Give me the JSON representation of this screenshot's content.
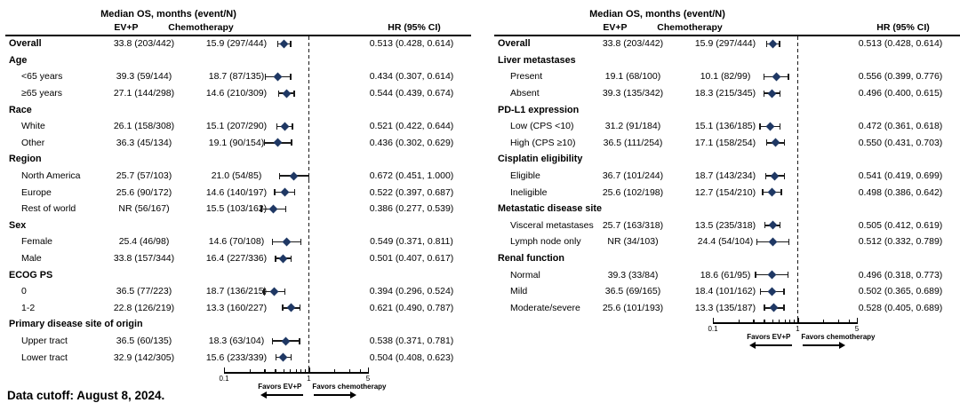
{
  "figure": {
    "footnote": "Data cutoff: August 8, 2024."
  },
  "chart_data": [
    {
      "type": "forest",
      "title": "Median OS, months (event/N)",
      "col_headers": {
        "ev_p": "EV+P",
        "chemo": "Chemotherapy",
        "hr": "HR (95% CI)"
      },
      "axis": {
        "scale": "log",
        "min": 0.1,
        "max": 5,
        "ref": 1,
        "major_ticks": [
          0.1,
          1,
          5
        ],
        "major_tick_labels": [
          "0.1",
          "1",
          "5"
        ],
        "minor_ticks": [
          0.2,
          0.3,
          0.4,
          0.5,
          0.6,
          0.7,
          0.8,
          0.9,
          2,
          3,
          4
        ]
      },
      "favors_left": "Favors EV+P",
      "favors_right": "Favors chemotherapy",
      "marker_color": "#1F3864",
      "rows": [
        {
          "label": "Overall",
          "bold": true,
          "ev_p": "33.8 (203/442)",
          "chemo": "15.9 (297/444)",
          "hr": 0.513,
          "ci_low": 0.428,
          "ci_high": 0.614,
          "hr_text": "0.513 (0.428, 0.614)"
        },
        {
          "label": "Age",
          "group": true
        },
        {
          "label": "<65 years",
          "ev_p": "39.3 (59/144)",
          "chemo": "18.7 (87/135)",
          "hr": 0.434,
          "ci_low": 0.307,
          "ci_high": 0.614,
          "hr_text": "0.434 (0.307, 0.614)"
        },
        {
          "label": "≥65 years",
          "ev_p": "27.1 (144/298)",
          "chemo": "14.6 (210/309)",
          "hr": 0.544,
          "ci_low": 0.439,
          "ci_high": 0.674,
          "hr_text": "0.544 (0.439, 0.674)"
        },
        {
          "label": "Race",
          "group": true
        },
        {
          "label": "White",
          "ev_p": "26.1 (158/308)",
          "chemo": "15.1 (207/290)",
          "hr": 0.521,
          "ci_low": 0.422,
          "ci_high": 0.644,
          "hr_text": "0.521 (0.422, 0.644)"
        },
        {
          "label": "Other",
          "ev_p": "36.3 (45/134)",
          "chemo": "19.1 (90/154)",
          "hr": 0.436,
          "ci_low": 0.302,
          "ci_high": 0.629,
          "hr_text": "0.436 (0.302, 0.629)"
        },
        {
          "label": "Region",
          "group": true
        },
        {
          "label": "North America",
          "ev_p": "25.7 (57/103)",
          "chemo": "21.0 (54/85)",
          "hr": 0.672,
          "ci_low": 0.451,
          "ci_high": 1.0,
          "hr_text": "0.672 (0.451, 1.000)"
        },
        {
          "label": "Europe",
          "ev_p": "25.6 (90/172)",
          "chemo": "14.6 (140/197)",
          "hr": 0.522,
          "ci_low": 0.397,
          "ci_high": 0.687,
          "hr_text": "0.522 (0.397, 0.687)"
        },
        {
          "label": "Rest of world",
          "ev_p": "NR (56/167)",
          "chemo": "15.5 (103/162)",
          "hr": 0.386,
          "ci_low": 0.277,
          "ci_high": 0.539,
          "hr_text": "0.386 (0.277, 0.539)"
        },
        {
          "label": "Sex",
          "group": true
        },
        {
          "label": "Female",
          "ev_p": "25.4 (46/98)",
          "chemo": "14.6 (70/108)",
          "hr": 0.549,
          "ci_low": 0.371,
          "ci_high": 0.811,
          "hr_text": "0.549 (0.371, 0.811)"
        },
        {
          "label": "Male",
          "ev_p": "33.8 (157/344)",
          "chemo": "16.4 (227/336)",
          "hr": 0.501,
          "ci_low": 0.407,
          "ci_high": 0.617,
          "hr_text": "0.501 (0.407, 0.617)"
        },
        {
          "label": "ECOG PS",
          "group": true
        },
        {
          "label": "0",
          "ev_p": "36.5 (77/223)",
          "chemo": "18.7 (136/215)",
          "hr": 0.394,
          "ci_low": 0.296,
          "ci_high": 0.524,
          "hr_text": "0.394 (0.296, 0.524)"
        },
        {
          "label": "1-2",
          "ev_p": "22.8 (126/219)",
          "chemo": "13.3 (160/227)",
          "hr": 0.621,
          "ci_low": 0.49,
          "ci_high": 0.787,
          "hr_text": "0.621 (0.490, 0.787)"
        },
        {
          "label": "Primary disease site of origin",
          "group": true
        },
        {
          "label": "Upper tract",
          "ev_p": "36.5 (60/135)",
          "chemo": "18.3 (63/104)",
          "hr": 0.538,
          "ci_low": 0.371,
          "ci_high": 0.781,
          "hr_text": "0.538 (0.371, 0.781)"
        },
        {
          "label": "Lower tract",
          "ev_p": "32.9 (142/305)",
          "chemo": "15.6 (233/339)",
          "hr": 0.504,
          "ci_low": 0.408,
          "ci_high": 0.623,
          "hr_text": "0.504 (0.408, 0.623)"
        }
      ]
    },
    {
      "type": "forest",
      "title": "Median OS, months (event/N)",
      "col_headers": {
        "ev_p": "EV+P",
        "chemo": "Chemotherapy",
        "hr": "HR (95% CI)"
      },
      "axis": {
        "scale": "log",
        "min": 0.1,
        "max": 5,
        "ref": 1,
        "major_ticks": [
          0.1,
          1,
          5
        ],
        "major_tick_labels": [
          "0.1",
          "1",
          "5"
        ],
        "minor_ticks": [
          0.2,
          0.3,
          0.4,
          0.5,
          0.6,
          0.7,
          0.8,
          0.9,
          2,
          3,
          4
        ]
      },
      "favors_left": "Favors EV+P",
      "favors_right": "Favors chemotherapy",
      "marker_color": "#1F3864",
      "rows": [
        {
          "label": "Overall",
          "bold": true,
          "ev_p": "33.8 (203/442)",
          "chemo": "15.9 (297/444)",
          "hr": 0.513,
          "ci_low": 0.428,
          "ci_high": 0.614,
          "hr_text": "0.513 (0.428, 0.614)"
        },
        {
          "label": "Liver metastases",
          "group": true
        },
        {
          "label": "Present",
          "ev_p": "19.1 (68/100)",
          "chemo": "10.1 (82/99)",
          "hr": 0.556,
          "ci_low": 0.399,
          "ci_high": 0.776,
          "hr_text": "0.556 (0.399, 0.776)"
        },
        {
          "label": "Absent",
          "ev_p": "39.3 (135/342)",
          "chemo": "18.3 (215/345)",
          "hr": 0.496,
          "ci_low": 0.4,
          "ci_high": 0.615,
          "hr_text": "0.496 (0.400, 0.615)"
        },
        {
          "label": "PD-L1 expression",
          "group": true
        },
        {
          "label": "Low (CPS <10)",
          "ev_p": "31.2 (91/184)",
          "chemo": "15.1 (136/185)",
          "hr": 0.472,
          "ci_low": 0.361,
          "ci_high": 0.618,
          "hr_text": "0.472 (0.361, 0.618)"
        },
        {
          "label": "High (CPS ≥10)",
          "ev_p": "36.5 (111/254)",
          "chemo": "17.1 (158/254)",
          "hr": 0.55,
          "ci_low": 0.431,
          "ci_high": 0.703,
          "hr_text": "0.550 (0.431, 0.703)"
        },
        {
          "label": "Cisplatin eligibility",
          "group": true
        },
        {
          "label": "Eligible",
          "ev_p": "36.7 (101/244)",
          "chemo": "18.7 (143/234)",
          "hr": 0.541,
          "ci_low": 0.419,
          "ci_high": 0.699,
          "hr_text": "0.541 (0.419, 0.699)"
        },
        {
          "label": "Ineligible",
          "ev_p": "25.6 (102/198)",
          "chemo": "12.7 (154/210)",
          "hr": 0.498,
          "ci_low": 0.386,
          "ci_high": 0.642,
          "hr_text": "0.498 (0.386, 0.642)"
        },
        {
          "label": "Metastatic disease site",
          "group": true
        },
        {
          "label": "Visceral metastases",
          "ev_p": "25.7 (163/318)",
          "chemo": "13.5 (235/318)",
          "hr": 0.505,
          "ci_low": 0.412,
          "ci_high": 0.619,
          "hr_text": "0.505 (0.412, 0.619)"
        },
        {
          "label": "Lymph node only",
          "ev_p": "NR (34/103)",
          "chemo": "24.4 (54/104)",
          "hr": 0.512,
          "ci_low": 0.332,
          "ci_high": 0.789,
          "hr_text": "0.512 (0.332, 0.789)"
        },
        {
          "label": "Renal function",
          "group": true
        },
        {
          "label": "Normal",
          "ev_p": "39.3 (33/84)",
          "chemo": "18.6 (61/95)",
          "hr": 0.496,
          "ci_low": 0.318,
          "ci_high": 0.773,
          "hr_text": "0.496 (0.318, 0.773)"
        },
        {
          "label": "Mild",
          "ev_p": "36.5 (69/165)",
          "chemo": "18.4 (101/162)",
          "hr": 0.502,
          "ci_low": 0.365,
          "ci_high": 0.689,
          "hr_text": "0.502 (0.365, 0.689)"
        },
        {
          "label": "Moderate/severe",
          "ev_p": "25.6 (101/193)",
          "chemo": "13.3 (135/187)",
          "hr": 0.528,
          "ci_low": 0.405,
          "ci_high": 0.689,
          "hr_text": "0.528 (0.405, 0.689)"
        }
      ]
    }
  ]
}
